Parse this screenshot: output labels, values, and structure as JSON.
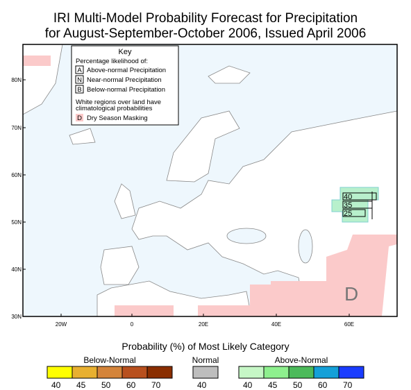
{
  "header": {
    "title_line1": "IRI Multi-Model Probability Forecast for Precipitation",
    "title_line2": "for August-September-October 2006, Issued April 2006"
  },
  "map": {
    "lat_labels": [
      "80N",
      "70N",
      "60N",
      "50N",
      "40N",
      "30N"
    ],
    "lon_labels": [
      "20W",
      "0",
      "20E",
      "40E",
      "60E"
    ],
    "forecast_box": {
      "labels": [
        "40",
        "35",
        "25"
      ]
    },
    "dry_mask_label": "D"
  },
  "key": {
    "title": "Key",
    "subtitle": "Percentage likelihood of:",
    "items": [
      {
        "letter": "A",
        "text": "Above-normal Precipitation"
      },
      {
        "letter": "N",
        "text": "Near-normal Precipitation"
      },
      {
        "letter": "B",
        "text": "Below-normal Precipitation"
      }
    ],
    "note_line1": "White regions over land have",
    "note_line2": "climatological probabilities",
    "dry": {
      "letter": "D",
      "text": "Dry Season Masking"
    }
  },
  "legend": {
    "title": "Probability (%) of Most Likely Category",
    "groups": [
      {
        "name": "Below-Normal",
        "colors": [
          "#ffff00",
          "#e8b030",
          "#d4843a",
          "#b8501e",
          "#8a2e00"
        ],
        "labels": [
          "40",
          "45",
          "50",
          "60",
          "70"
        ]
      },
      {
        "name": "Normal",
        "colors": [
          "#bdbdbd"
        ],
        "labels": [
          "40"
        ]
      },
      {
        "name": "Above-Normal",
        "colors": [
          "#c6f7c6",
          "#8ef08e",
          "#4cba5a",
          "#14a0d8",
          "#1a3cff"
        ],
        "labels": [
          "40",
          "45",
          "50",
          "60",
          "70"
        ]
      }
    ]
  }
}
